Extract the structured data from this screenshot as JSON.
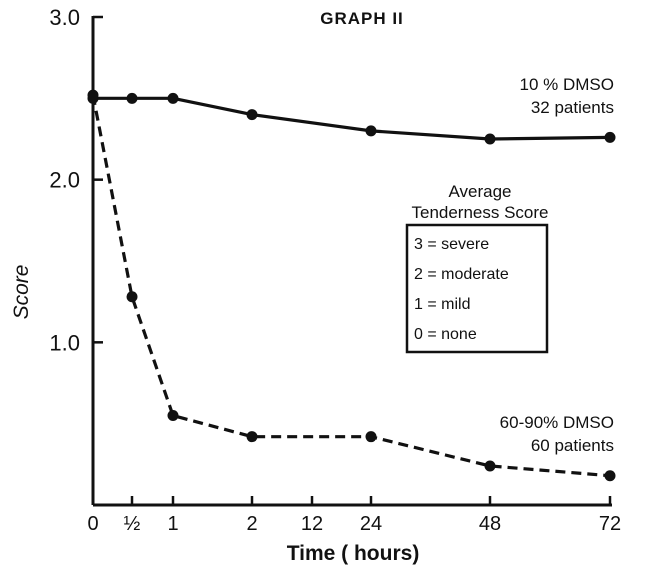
{
  "chart_data": {
    "type": "line",
    "title": "GRAPH II",
    "xlabel": "Time ( hours)",
    "ylabel": "Score",
    "x_categories": [
      "0",
      "½",
      "1",
      "2",
      "12",
      "24",
      "48",
      "72"
    ],
    "ylim": [
      0,
      3.0
    ],
    "y_ticks": [
      "1.0",
      "2.0",
      "3.0"
    ],
    "grid": false,
    "series": [
      {
        "name": "10 % DMSO",
        "label_lines": [
          "10 % DMSO",
          "32 patients"
        ],
        "style": "solid",
        "points": [
          {
            "x": "0",
            "y": 2.5
          },
          {
            "x": "½",
            "y": 2.5
          },
          {
            "x": "1",
            "y": 2.5
          },
          {
            "x": "2",
            "y": 2.4
          },
          {
            "x": "24",
            "y": 2.3
          },
          {
            "x": "48",
            "y": 2.25
          },
          {
            "x": "72",
            "y": 2.26
          }
        ]
      },
      {
        "name": "60-90% DMSO",
        "label_lines": [
          "60-90% DMSO",
          "60 patients"
        ],
        "style": "dashed",
        "points": [
          {
            "x": "0",
            "y": 2.52
          },
          {
            "x": "½",
            "y": 1.28
          },
          {
            "x": "1",
            "y": 0.55
          },
          {
            "x": "2",
            "y": 0.42
          },
          {
            "x": "24",
            "y": 0.42
          },
          {
            "x": "48",
            "y": 0.24
          },
          {
            "x": "72",
            "y": 0.18
          }
        ]
      }
    ],
    "key": {
      "heading": [
        "Average",
        "Tenderness Score"
      ],
      "items": [
        "3 = severe",
        "2 = moderate",
        "1 = mild",
        "0 = none"
      ]
    }
  }
}
